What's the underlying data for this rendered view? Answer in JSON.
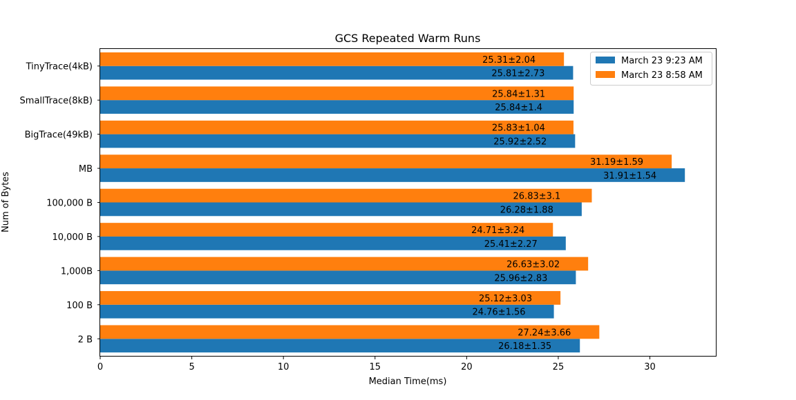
{
  "chart_data": {
    "type": "bar",
    "orientation": "horizontal",
    "title": "GCS Repeated Warm Runs",
    "xlabel": "Median Time(ms)",
    "ylabel": "Num of Bytes",
    "xlim": [
      0,
      33.6
    ],
    "xticks": [
      "0",
      "5",
      "10",
      "15",
      "20",
      "25",
      "30"
    ],
    "categories": [
      "2 B",
      "100 B",
      "1,000B",
      "10,000 B",
      "100,000 B",
      "MB",
      "BigTrace(49kB)",
      "SmallTrace(8kB)",
      "TinyTrace(4kB)"
    ],
    "legend_position": "top-right",
    "grid": false,
    "series": [
      {
        "name": "March 23 9:23 AM",
        "color": "#1f77b4",
        "values": [
          26.18,
          24.76,
          25.96,
          25.41,
          26.28,
          31.91,
          25.92,
          25.84,
          25.81
        ],
        "labels": [
          "26.18±1.35",
          "24.76±1.56",
          "25.96±2.83",
          "25.41±2.27",
          "26.28±1.88",
          "31.91±1.54",
          "25.92±2.52",
          "25.84±1.4",
          "25.81±2.73"
        ]
      },
      {
        "name": "March 23 8:58 AM",
        "color": "#ff7f0e",
        "values": [
          27.24,
          25.12,
          26.63,
          24.71,
          26.83,
          31.19,
          25.83,
          25.84,
          25.31
        ],
        "labels": [
          "27.24±3.66",
          "25.12±3.03",
          "26.63±3.02",
          "24.71±3.24",
          "26.83±3.1",
          "31.19±1.59",
          "25.83±1.04",
          "25.84±1.31",
          "25.31±2.04"
        ]
      }
    ]
  }
}
